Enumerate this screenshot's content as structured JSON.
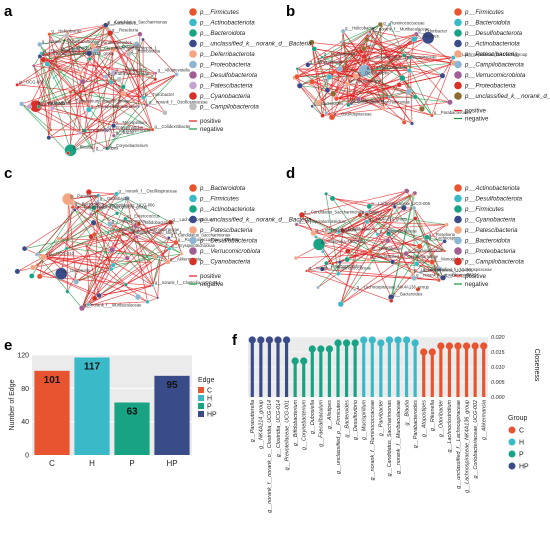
{
  "panels": {
    "a": "a",
    "b": "b",
    "c": "c",
    "d": "d",
    "e": "e",
    "f": "f"
  },
  "edge_legend": {
    "positive": "positive",
    "negative": "negative"
  },
  "colors": {
    "positive": "#e31a1c",
    "negative": "#1a9641",
    "C": "#e8542f",
    "H": "#3ab9c9",
    "P": "#17a384",
    "HP": "#3a4b8a"
  },
  "network_a": {
    "legend": [
      {
        "label": "p__Firmicutes",
        "color": "#e8542f"
      },
      {
        "label": "p__Actinobacteriota",
        "color": "#3ab9c9"
      },
      {
        "label": "p__Bacteroidota",
        "color": "#17a384"
      },
      {
        "label": "p__unclassified_k__norank_d__Bacteria",
        "color": "#3a4b8a"
      },
      {
        "label": "p__Deferribacterota",
        "color": "#f4a582"
      },
      {
        "label": "p__Proteobacteria",
        "color": "#8fb6d0"
      },
      {
        "label": "p__Desulfobacterota",
        "color": "#a15f93"
      },
      {
        "label": "p__Patescibacteria",
        "color": "#c2a5cf"
      },
      {
        "label": "p__Cyanobacteria",
        "color": "#d73027"
      },
      {
        "label": "p__Campilobacterota",
        "color": "#bdbdbd"
      }
    ],
    "nodes": [
      "g__Helicobacter",
      "g__Erysipelatoclostridium",
      "g__Corynebacterium",
      "g__Mucispirillum",
      "g__Dubosiella",
      "g__norank_f__Muribaculaceae",
      "g__Alloprevotella",
      "g__unclassified_f__Lachnospiraceae",
      "g__Desulfovibrio",
      "g__Alistipes",
      "g__Colidextribacter",
      "g__Turicibacter",
      "g__Rikenella",
      "g__Lachnospiraceae_NK4A136_group",
      "g__Parabacteroides",
      "g__Ruminococcaceae",
      "g__norank_f__Oscillospiraceae",
      "g__Lactobacillus",
      "g__Roseburia",
      "g__Romboutsia",
      "g__Bacteroides",
      "g__Faecalibaculum",
      "g__Blautia",
      "g__Candidatus_Saccharimonas",
      "g__Oscillibacter",
      "g__Clostridium_sensu_stricto_1",
      "g__Bacilli",
      "g__Enterorhabdus",
      "g__UCG-005",
      "g__Eubacterium_siraeum_group"
    ]
  },
  "network_b": {
    "legend": [
      {
        "label": "p__Firmicutes",
        "color": "#e8542f"
      },
      {
        "label": "p__Bacteroidota",
        "color": "#3ab9c9"
      },
      {
        "label": "p__Desulfobacterota",
        "color": "#17a384"
      },
      {
        "label": "p__Actinobacteriota",
        "color": "#3a4b8a"
      },
      {
        "label": "p__Patescibacteria",
        "color": "#f4a582"
      },
      {
        "label": "p__Campilobacterota",
        "color": "#8fb6d0"
      },
      {
        "label": "p__Verrucomicrobiota",
        "color": "#a15f93"
      },
      {
        "label": "p__Proteobacteria",
        "color": "#d73027"
      },
      {
        "label": "p__unclassified_k__norank_d__Bacteria",
        "color": "#8c6d31"
      }
    ],
    "nodes": [
      "g__Parabacteroides",
      "g__Alistipes",
      "g__Muribaculum",
      "g__Alloprevotella",
      "g__Sporosarcina",
      "g__Lachnoclostridium",
      "g__Odoribacter",
      "g__unclassified_f__Lachnospiraceae",
      "g__Ruminococcaceae",
      "g__Oscillospiraceae",
      "g__Lachnospiraceae_NK4A136_group",
      "g__Candidatus_Saccharimonas",
      "g__Bacteroides",
      "g__Desulfovibrio",
      "g__Helicobacter",
      "g__Akkermansia",
      "g__norank_f__Muribaculaceae"
    ]
  },
  "network_c": {
    "legend": [
      {
        "label": "p__Bacteroidota",
        "color": "#e8542f"
      },
      {
        "label": "p__Firmicutes",
        "color": "#3ab9c9"
      },
      {
        "label": "p__Actinobacteriota",
        "color": "#17a384"
      },
      {
        "label": "p__unclassified_k__norank_d__Bacteria",
        "color": "#3a4b8a"
      },
      {
        "label": "p__Patescibacteria",
        "color": "#f4a582"
      },
      {
        "label": "p__Desulfobacterota",
        "color": "#8fb6d0"
      },
      {
        "label": "p__Verrucomicrobiota",
        "color": "#a15f93"
      },
      {
        "label": "p__Cyanobacteria",
        "color": "#d73027"
      }
    ],
    "nodes": [
      "g__Bacteroides",
      "g__Erysipelotrichaceae",
      "g__Enterococcus",
      "g__Candidatus_Saccharimonas",
      "g__Parvibacter",
      "g__Streptococcus",
      "g__Bifidobacterium",
      "g__UCG-010",
      "g__Ruminococcaceae_UCG-001",
      "g__norank_f__Oscillospiraceae",
      "g__Lachnospiraceae_UCG-006",
      "g__Eubacterium_xylanophilum_group",
      "g__Akkermansia",
      "g__Oscillibacter",
      "g__norank_f__Muribaculaceae",
      "g__Lachnoclostridium",
      "g__Clostridium_sensu_stricto_1",
      "g__norank_f__Clostridia_UCG-014",
      "g__unclassified_f__Lachnospiraceae",
      "g__Dubosiella"
    ]
  },
  "network_d": {
    "legend": [
      {
        "label": "p__Actinobacteriota",
        "color": "#e8542f"
      },
      {
        "label": "p__Desulfobacterota",
        "color": "#3ab9c9"
      },
      {
        "label": "p__Firmicutes",
        "color": "#17a384"
      },
      {
        "label": "p__Cyanobacteria",
        "color": "#3a4b8a"
      },
      {
        "label": "p__Patescibacteria",
        "color": "#f4a582"
      },
      {
        "label": "p__Bacteroidota",
        "color": "#8fb6d0"
      },
      {
        "label": "p__Proteobacteria",
        "color": "#a15f93"
      },
      {
        "label": "p__Campilobacterota",
        "color": "#d73027"
      }
    ],
    "nodes": [
      "g__Helicobacter",
      "g__NK4A214_group",
      "g__Roseburia",
      "g__Parabacteroides",
      "g__Lachnoclostridium",
      "g__norank_f__norank_o__RF39",
      "g__Ruminococcus",
      "g__Blautia",
      "g__Monoglobus",
      "g__Oscillibacter",
      "g__Clostridia_UCG-014",
      "g__Dubosiella",
      "g__unclassified_f__Oscillospiraceae",
      "g__Lachnospiraceae_NK4A136_group",
      "g__Erysipelatoclostridium",
      "g__Candidatus_Saccharimonas",
      "g__norank_f__Ruminococcaceae",
      "g__Eggerthellaceae",
      "g__Lachnospiraceae_UCG-006",
      "g__Bacteroides",
      "g__Lachnospiraceae_UCG-001",
      "g__unclassified_f__Lachnospiraceae",
      "g__Lachnospira"
    ]
  },
  "chart_e": {
    "type": "bar",
    "categories": [
      "C",
      "H",
      "P",
      "HP"
    ],
    "values": [
      101,
      117,
      63,
      95
    ],
    "ylabel": "Number of Edge",
    "legend_title": "Edge",
    "ylim": [
      0,
      120
    ],
    "yticks": [
      "0",
      "40",
      "80",
      "120"
    ]
  },
  "chart_f": {
    "type": "lollipop",
    "ylabel": "Closeness",
    "legend_title": "Group",
    "groups": [
      "C",
      "H",
      "P",
      "HP"
    ],
    "yticks": [
      "0.000",
      "0.005",
      "0.010",
      "0.015",
      "0.020"
    ],
    "ylim": [
      0,
      0.02
    ],
    "items": [
      {
        "taxon": "g__Parasutterella",
        "group": "HP",
        "value": 0.02
      },
      {
        "taxon": "g__NK4A214_group",
        "group": "HP",
        "value": 0.02
      },
      {
        "taxon": "g__norank_f__norank_o__Clostridia_UCG-014",
        "group": "HP",
        "value": 0.02
      },
      {
        "taxon": "g__Clostridia_UCG-014",
        "group": "HP",
        "value": 0.02
      },
      {
        "taxon": "g__Prevotellaceae_UCG-001",
        "group": "HP",
        "value": 0.02
      },
      {
        "taxon": "g__Bifidobacterium",
        "group": "P",
        "value": 0.013
      },
      {
        "taxon": "g__Corynebacterium",
        "group": "P",
        "value": 0.013
      },
      {
        "taxon": "g__Dubosiella",
        "group": "P",
        "value": 0.017
      },
      {
        "taxon": "g__Faecalibaculum",
        "group": "P",
        "value": 0.017
      },
      {
        "taxon": "g__Alistipes",
        "group": "P",
        "value": 0.017
      },
      {
        "taxon": "g__unclassified_p__Firmicutes",
        "group": "P",
        "value": 0.019
      },
      {
        "taxon": "g__Bacteroides",
        "group": "P",
        "value": 0.019
      },
      {
        "taxon": "g__Desulfovibrio",
        "group": "P",
        "value": 0.019
      },
      {
        "taxon": "g__Mucispirillum",
        "group": "H",
        "value": 0.021
      },
      {
        "taxon": "g__norank_f__Ruminococcaceae",
        "group": "H",
        "value": 0.021
      },
      {
        "taxon": "g__Parvibacter",
        "group": "H",
        "value": 0.019
      },
      {
        "taxon": "g__Candidatus_Saccharimonas",
        "group": "H",
        "value": 0.021
      },
      {
        "taxon": "g__norank_f__Muribaculaceae",
        "group": "H",
        "value": 0.021
      },
      {
        "taxon": "g__Blautia",
        "group": "H",
        "value": 0.021
      },
      {
        "taxon": "g__Parabacteroides",
        "group": "H",
        "value": 0.019
      },
      {
        "taxon": "g__Atopostipes",
        "group": "C",
        "value": 0.016
      },
      {
        "taxon": "g__Rikenella",
        "group": "C",
        "value": 0.016
      },
      {
        "taxon": "g__Odoribacter",
        "group": "C",
        "value": 0.018
      },
      {
        "taxon": "g__Lachnoclostridium",
        "group": "C",
        "value": 0.018
      },
      {
        "taxon": "g__unclassified_f__Lachnospiraceae",
        "group": "C",
        "value": 0.018
      },
      {
        "taxon": "g__Lachnospiraceae_NK4A136_group",
        "group": "C",
        "value": 0.018
      },
      {
        "taxon": "g__Coriobacteriaceae_UCG-002",
        "group": "C",
        "value": 0.018
      },
      {
        "taxon": "g__Akkermansia",
        "group": "C",
        "value": 0.018
      }
    ]
  }
}
